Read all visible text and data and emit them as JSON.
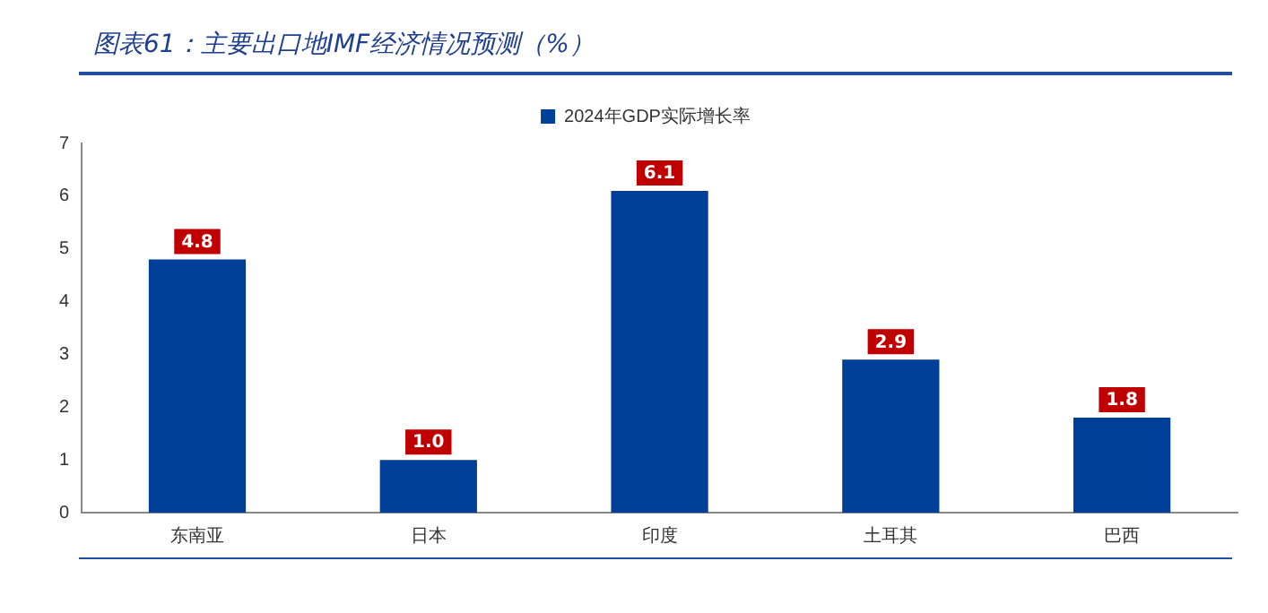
{
  "chart_data": {
    "type": "bar",
    "title": "图表61：主要出口地IMF经济情况预测（%）",
    "categories": [
      "东南亚",
      "日本",
      "印度",
      "土耳其",
      "巴西"
    ],
    "series": [
      {
        "name": "2024年GDP实际增长率",
        "color": "#003f98",
        "values": [
          4.8,
          1.0,
          6.1,
          2.9,
          1.8
        ],
        "value_labels": [
          "4.8",
          "1.0",
          "6.1",
          "2.9",
          "1.8"
        ]
      }
    ],
    "ylim": [
      0,
      7
    ],
    "yticks": [
      0,
      1,
      2,
      3,
      4,
      5,
      6,
      7
    ],
    "grid": false,
    "legend": "top"
  }
}
